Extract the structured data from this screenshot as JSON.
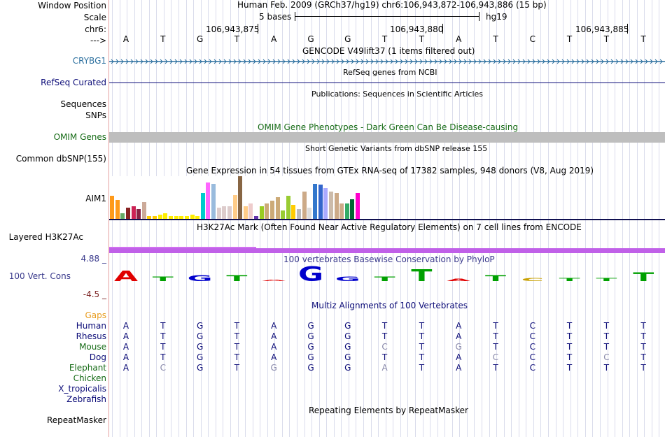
{
  "header": {
    "window_position_label": "Window Position",
    "window_position_text": "Human Feb. 2009 (GRCh37/hg19)   chr6:106,943,872-106,943,886 (15 bp)",
    "scale_label": "Scale",
    "scale_text": "5 bases",
    "scale_assembly": "hg19",
    "chrom_label": "chr6:",
    "positions": [
      "106,943,875",
      "106,943,880",
      "106,943,885"
    ],
    "strand_label": "--->"
  },
  "reference_bases": [
    "A",
    "T",
    "G",
    "T",
    "A",
    "G",
    "G",
    "T",
    "T",
    "A",
    "T",
    "C",
    "T",
    "T",
    "T"
  ],
  "tracks": {
    "gencode": {
      "title": "GENCODE V49lift37 (1 items filtered out)",
      "label": "CRYBG1"
    },
    "refseq": {
      "title": "RefSeq genes from NCBI",
      "label": "RefSeq Curated"
    },
    "publications": {
      "title": "Publications: Sequences in Scientific Articles",
      "label": "Sequences"
    },
    "snps": {
      "label": "SNPs"
    },
    "omim": {
      "title": "OMIM Gene Phenotypes - Dark Green Can Be Disease-causing",
      "label": "OMIM Genes"
    },
    "dbsnp": {
      "title": "Short Genetic Variants from dbSNP release 155",
      "label": "Common dbSNP(155)"
    },
    "gtex": {
      "title": "Gene Expression in 54 tissues from GTEx RNA-seq of 17382 samples, 948 donors (V8, Aug 2019)",
      "label": "AIM1"
    },
    "h3k27ac": {
      "title": "H3K27Ac Mark (Often Found Near Active Regulatory Elements) on 7 cell lines from ENCODE",
      "label": "Layered H3K27Ac"
    },
    "phylop": {
      "title": "100 vertebrates Basewise Conservation by PhyloP",
      "label": "100 Vert. Cons",
      "max": "4.88 _",
      "min": "-4.5 _"
    },
    "multiz": {
      "title": "Multiz Alignments of 100 Vertebrates",
      "gaps_label": "Gaps"
    },
    "repeatmasker": {
      "title": "Repeating Elements by RepeatMasker",
      "label": "RepeatMasker"
    }
  },
  "alignments": [
    {
      "species": "Human",
      "bases": [
        "A",
        "T",
        "G",
        "T",
        "A",
        "G",
        "G",
        "T",
        "T",
        "A",
        "T",
        "C",
        "T",
        "T",
        "T"
      ],
      "diff": []
    },
    {
      "species": "Rhesus",
      "bases": [
        "A",
        "T",
        "G",
        "T",
        "A",
        "G",
        "G",
        "T",
        "T",
        "A",
        "T",
        "C",
        "T",
        "T",
        "T"
      ],
      "diff": []
    },
    {
      "species": "Mouse",
      "bases": [
        "A",
        "T",
        "G",
        "T",
        "A",
        "G",
        "G",
        "C",
        "T",
        "G",
        "T",
        "C",
        "T",
        "T",
        "T"
      ],
      "diff": [
        7,
        9
      ]
    },
    {
      "species": "Dog",
      "bases": [
        "A",
        "T",
        "G",
        "T",
        "A",
        "G",
        "G",
        "T",
        "T",
        "A",
        "C",
        "C",
        "T",
        "C",
        "T"
      ],
      "diff": [
        10,
        13
      ]
    },
    {
      "species": "Elephant",
      "bases": [
        "A",
        "C",
        "G",
        "T",
        "G",
        "G",
        "G",
        "A",
        "T",
        "A",
        "T",
        "C",
        "T",
        "T",
        "T"
      ],
      "diff": [
        1,
        4,
        7
      ]
    },
    {
      "species": "Chicken",
      "bases": [],
      "diff": []
    },
    {
      "species": "X_tropicalis",
      "bases": [],
      "diff": []
    },
    {
      "species": "Zebrafish",
      "bases": [],
      "diff": []
    }
  ],
  "gtex_colors": [
    "#ff9a1a",
    "#ff9a1a",
    "#66aa66",
    "#882222",
    "#cc2255",
    "#882244",
    "#ccaa99",
    "#ffcc00",
    "#ffcc00",
    "#ffee00",
    "#ffee00",
    "#ffee00",
    "#ffee00",
    "#ffee00",
    "#ffee00",
    "#ffee00",
    "#ffee00",
    "#00cccc",
    "#ff66ff",
    "#99bbdd",
    "#ddcccc",
    "#ddcccc",
    "#ddcccc",
    "#ffcc88",
    "#886644",
    "#ffcc88",
    "#eecccc",
    "#6633aa",
    "#99cc22",
    "#ccaa77",
    "#ccaa77",
    "#ccaa77",
    "#99cc33",
    "#99cc33",
    "#ffcc00",
    "#bbbbbb",
    "#ccaa88",
    "#dddddd",
    "#3377cc",
    "#3366cc",
    "#aaaaff",
    "#ccbbaa",
    "#ccaa88",
    "#ccaa88",
    "#33aa66",
    "#006633",
    "#ff00cc"
  ],
  "gtex_values": [
    32,
    27,
    8,
    16,
    18,
    14,
    24,
    4,
    4,
    6,
    8,
    4,
    4,
    4,
    4,
    6,
    4,
    36,
    51,
    49,
    16,
    18,
    18,
    33,
    60,
    18,
    22,
    4,
    18,
    22,
    26,
    30,
    12,
    32,
    20,
    14,
    38,
    16,
    49,
    48,
    43,
    38,
    36,
    22,
    22,
    28,
    36
  ],
  "phylop_colors": {
    "up": "#00a000",
    "down": "#e00000",
    "blue": "#0000cc",
    "gray": "#aaaaaa"
  }
}
